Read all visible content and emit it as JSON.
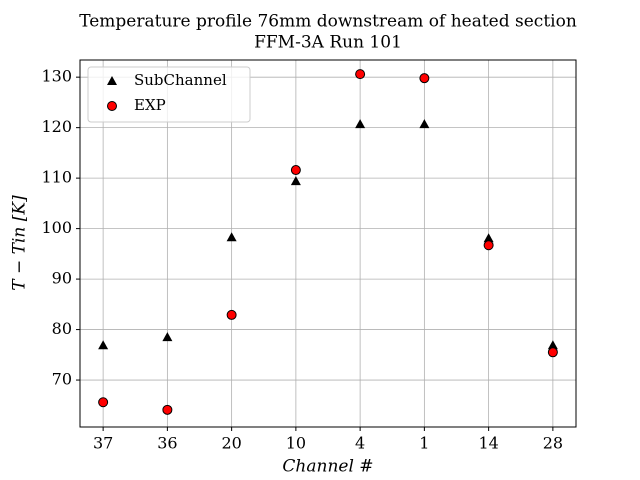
{
  "chart_data": {
    "type": "scatter",
    "title": "Temperature profile 76mm downstream of heated section",
    "subtitle": "FFM-3A Run 101",
    "xlabel": "Channel #",
    "ylabel": "T − Tin [K]",
    "categories": [
      "37",
      "36",
      "20",
      "10",
      "4",
      "1",
      "14",
      "28"
    ],
    "series": [
      {
        "name": "SubChannel",
        "color": "#000000",
        "marker": "triangle",
        "values": [
          76.9,
          78.5,
          98.3,
          109.4,
          120.7,
          120.7,
          98.1,
          76.9
        ]
      },
      {
        "name": "EXP",
        "color": "#ff0000",
        "marker": "circle",
        "values": [
          65.6,
          64.1,
          82.9,
          111.6,
          130.6,
          129.8,
          96.7,
          75.5
        ]
      }
    ],
    "ylim": [
      60.7,
      133.4
    ],
    "yticks": [
      70,
      80,
      90,
      100,
      110,
      120,
      130
    ],
    "grid": true,
    "legend": "upper-left"
  }
}
